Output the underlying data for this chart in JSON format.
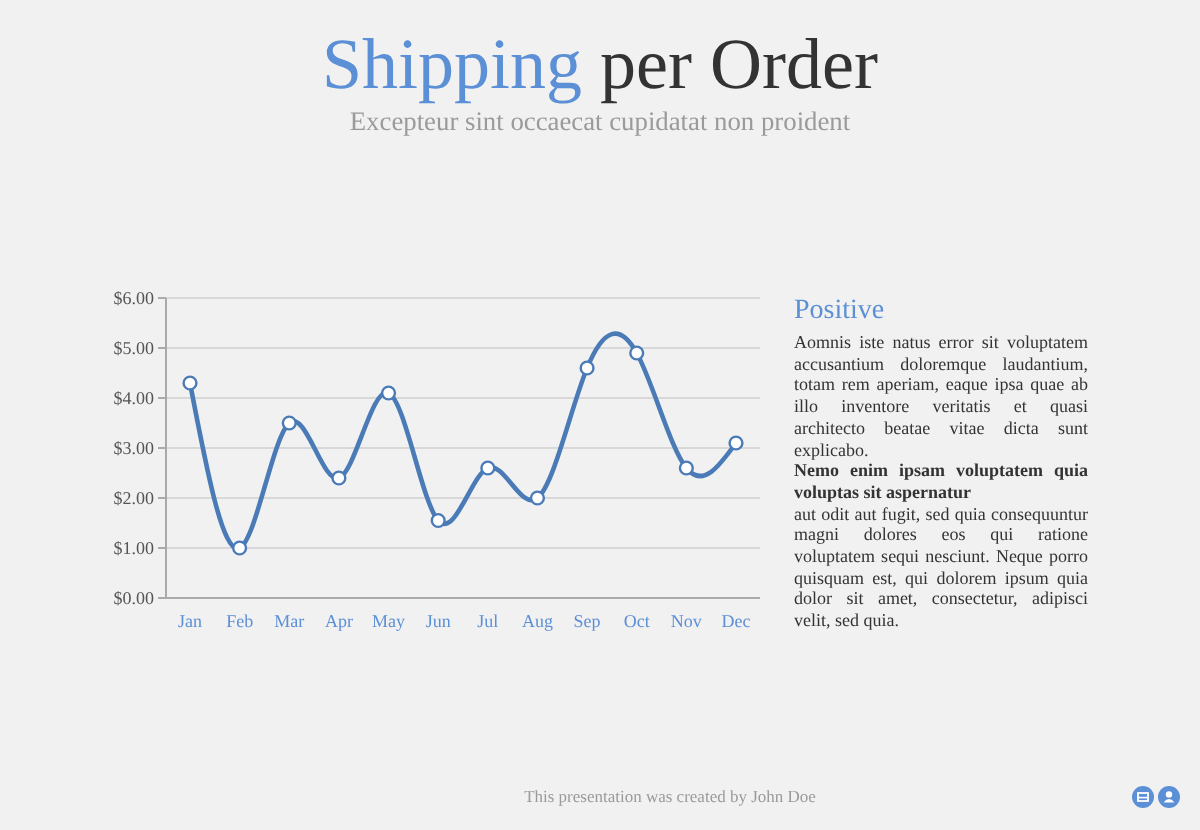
{
  "chart_data": {
    "type": "line",
    "title": "Shipping per Order",
    "subtitle": "Excepteur sint occaecat cupidatat non proident",
    "categories": [
      "Jan",
      "Feb",
      "Mar",
      "Apr",
      "May",
      "Jun",
      "Jul",
      "Aug",
      "Sep",
      "Oct",
      "Nov",
      "Dec"
    ],
    "series": [
      {
        "color": "#4a7bb7",
        "values": [
          4.3,
          1.0,
          3.5,
          2.4,
          4.1,
          1.55,
          2.6,
          2.0,
          4.6,
          4.9,
          2.6,
          3.1
        ]
      }
    ],
    "ylim": [
      0,
      6
    ],
    "yticks": [
      {
        "value": 0,
        "label": "$0.00"
      },
      {
        "value": 1,
        "label": "$1.00"
      },
      {
        "value": 2,
        "label": "$2.00"
      },
      {
        "value": 3,
        "label": "$3.00"
      },
      {
        "value": 4,
        "label": "$4.00"
      },
      {
        "value": 5,
        "label": "$5.00"
      },
      {
        "value": 6,
        "label": "$6.00"
      }
    ],
    "grid": "y",
    "marker": "circle",
    "line_style": "solid",
    "annotations": [
      "Positive",
      "Aomnis iste natus error sit voluptatem accusantium doloremque laudantium, totam rem aperiam, eaque ipsa quae ab illo inventore veritatis et quasi architecto beatae vitae dicta sunt explicabo.",
      "Nemo enim ipsam voluptatem quia voluptas sit aspernatur",
      "aut odit aut fugit, sed quia consequuntur magni dolores eos qui ratione voluptatem sequi nesciunt. Neque porro quisquam est, qui dolorem ipsum quia dolor sit amet, consectetur, adipisci velit, sed quia.",
      "This presentation was created by John Doe"
    ]
  }
}
